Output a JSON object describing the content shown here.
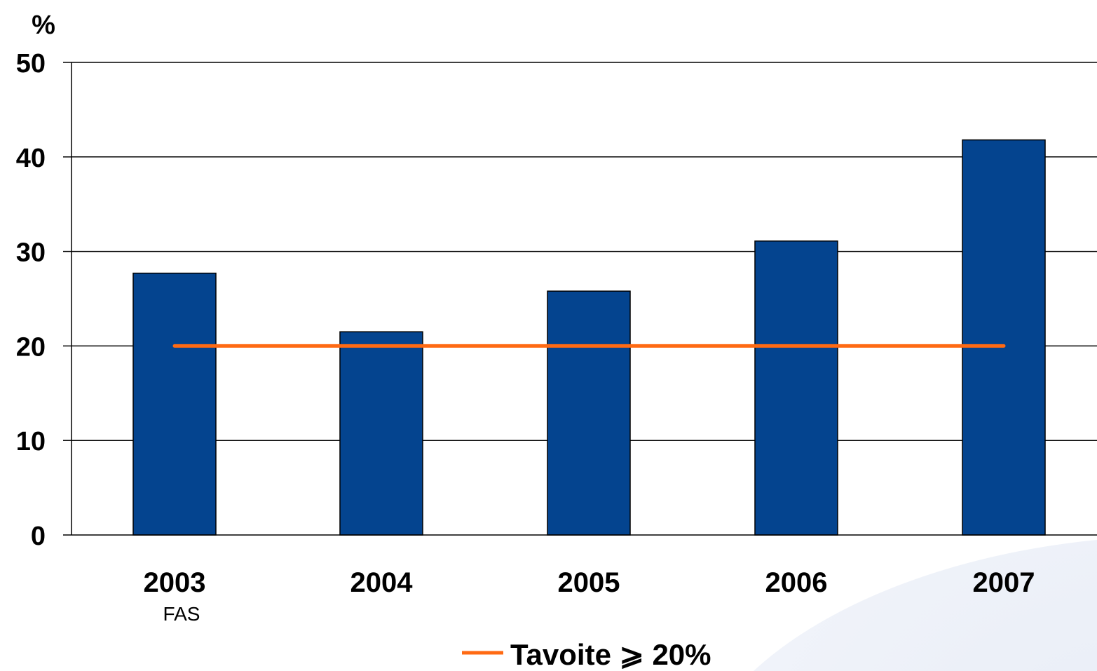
{
  "chart_data": {
    "type": "bar",
    "unit_label": "%",
    "categories": [
      "2003",
      "2004",
      "2005",
      "2006",
      "2007"
    ],
    "category_sublabels": [
      "FAS",
      "",
      "",
      "",
      ""
    ],
    "series": [
      {
        "values": [
          27.7,
          21.5,
          25.8,
          31.1,
          41.8
        ],
        "color": "#04448F"
      }
    ],
    "target_line": {
      "name": "Tavoite ⩾ 20%",
      "value": 20,
      "color": "#FF6A13"
    },
    "ylim": [
      0,
      50
    ],
    "yticks": [
      0,
      10,
      20,
      30,
      40,
      50
    ],
    "grid": true,
    "legend": "bottom-center"
  }
}
